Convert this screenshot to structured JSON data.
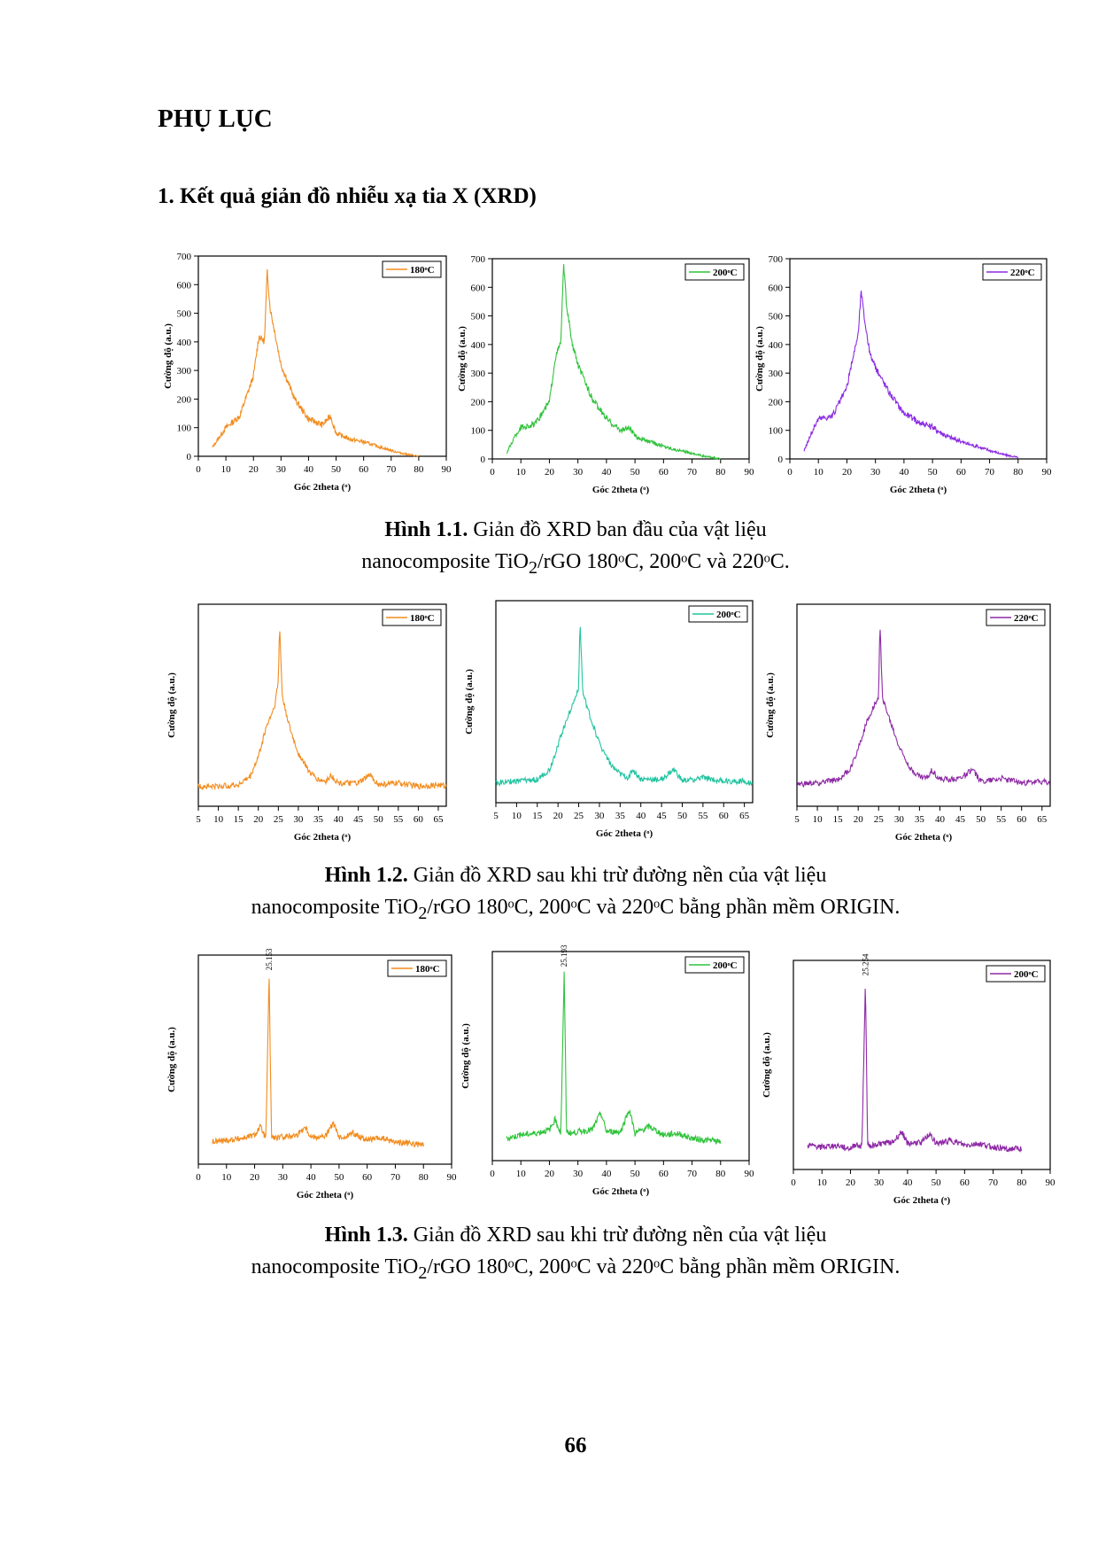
{
  "heading": "PHỤ LỤC",
  "section": "1. Kết quả giản đồ nhiễu xạ tia X (XRD)",
  "page_number": "66",
  "captions": [
    {
      "label": "Hình 1.1.",
      "line1": "Giản đồ XRD ban đầu của vật liệu",
      "line2_pre": "nanocomposite TiO",
      "sub": "2",
      "line2_post": "/rGO 180ᵒC, 200ᵒC và 220ᵒC."
    },
    {
      "label": "Hình 1.2.",
      "line1": "Giản đồ XRD sau khi trừ đường nền của vật liệu",
      "line2_pre": "nanocomposite TiO",
      "sub": "2",
      "line2_post": "/rGO 180ᵒC, 200ᵒC và 220ᵒC bằng phần mềm ORIGIN."
    },
    {
      "label": "Hình 1.3.",
      "line1": "Giản đồ XRD sau khi trừ đường nền của vật liệu",
      "line2_pre": "nanocomposite TiO",
      "sub": "2",
      "line2_post": "/rGO 180ᵒC, 200ᵒC và 220ᵒC bằng phần mềm ORIGIN."
    }
  ],
  "colors": {
    "s180": "#f28c1e",
    "s200": "#2fc33b",
    "s220": "#8b2be2",
    "s200_teal": "#22c4a0",
    "s200_purple": "#8e2aa6"
  },
  "chart_data": [
    {
      "type": "line",
      "figure": "1.1",
      "legend": "180ᵒC",
      "color": "#f28c1e",
      "xlabel": "Góc 2theta (ᵒ)",
      "ylabel": "Cường độ (a.u.)",
      "xlim": [
        0,
        90
      ],
      "ylim": [
        0,
        700
      ],
      "xticks": [
        0,
        10,
        20,
        30,
        40,
        50,
        60,
        70,
        80,
        90
      ],
      "yticks": [
        0,
        100,
        200,
        300,
        400,
        500,
        600,
        700
      ],
      "x": [
        5,
        10,
        15,
        20,
        22,
        24,
        25,
        26,
        28,
        30,
        35,
        40,
        45,
        48,
        50,
        55,
        60,
        65,
        70,
        75,
        80
      ],
      "y": [
        30,
        100,
        140,
        280,
        420,
        400,
        650,
        520,
        420,
        320,
        200,
        130,
        110,
        140,
        80,
        60,
        50,
        35,
        20,
        8,
        0
      ]
    },
    {
      "type": "line",
      "figure": "1.1",
      "legend": "200ᵒC",
      "color": "#2fc33b",
      "xlabel": "Góc 2theta (ᵒ)",
      "ylabel": "Cường độ (a.u.)",
      "xlim": [
        0,
        90
      ],
      "ylim": [
        0,
        700
      ],
      "xticks": [
        0,
        10,
        20,
        30,
        40,
        50,
        60,
        70,
        80,
        90
      ],
      "yticks": [
        0,
        100,
        200,
        300,
        400,
        500,
        600,
        700
      ],
      "x": [
        5,
        8,
        10,
        15,
        20,
        22,
        24,
        25,
        26,
        28,
        30,
        35,
        40,
        45,
        48,
        50,
        55,
        60,
        65,
        70,
        75,
        80
      ],
      "y": [
        20,
        80,
        110,
        120,
        200,
        350,
        410,
        680,
        540,
        400,
        330,
        210,
        140,
        100,
        110,
        80,
        60,
        45,
        30,
        20,
        8,
        0
      ]
    },
    {
      "type": "line",
      "figure": "1.1",
      "legend": "220ᵒC",
      "color": "#8b2be2",
      "xlabel": "Góc 2theta (ᵒ)",
      "ylabel": "Cường độ (a.u.)",
      "xlim": [
        0,
        90
      ],
      "ylim": [
        0,
        700
      ],
      "xticks": [
        0,
        10,
        20,
        30,
        40,
        50,
        60,
        70,
        80,
        90
      ],
      "yticks": [
        0,
        100,
        200,
        300,
        400,
        500,
        600,
        700
      ],
      "x": [
        5,
        8,
        10,
        15,
        20,
        22,
        24,
        25,
        26,
        28,
        30,
        35,
        40,
        45,
        50,
        55,
        60,
        65,
        70,
        75,
        80
      ],
      "y": [
        30,
        100,
        140,
        150,
        250,
        350,
        440,
        590,
        500,
        370,
        320,
        230,
        160,
        130,
        110,
        80,
        60,
        45,
        30,
        15,
        5
      ]
    },
    {
      "type": "line",
      "figure": "1.2",
      "legend": "180ᵒC",
      "color": "#f28c1e",
      "xlabel": "Góc 2theta (ᵒ)",
      "ylabel": "Cường độ (a.u.)",
      "xlim": [
        5,
        67
      ],
      "xticks": [
        5,
        10,
        15,
        20,
        25,
        30,
        35,
        40,
        45,
        50,
        55,
        60,
        65
      ],
      "x": [
        5,
        10,
        15,
        18,
        20,
        22,
        24,
        25,
        25.3,
        26,
        28,
        30,
        33,
        35,
        37,
        38,
        40,
        45,
        48,
        50,
        55,
        60,
        65,
        67
      ],
      "y": [
        0.02,
        0.02,
        0.03,
        0.08,
        0.2,
        0.38,
        0.5,
        0.65,
        1.0,
        0.56,
        0.36,
        0.22,
        0.1,
        0.06,
        0.05,
        0.09,
        0.04,
        0.04,
        0.09,
        0.03,
        0.04,
        0.02,
        0.03,
        0.02
      ]
    },
    {
      "type": "line",
      "figure": "1.2",
      "legend": "200ᵒC",
      "color": "#22c4a0",
      "xlabel": "Góc 2theta (ᵒ)",
      "ylabel": "Cường độ (a.u.)",
      "xlim": [
        5,
        67
      ],
      "xticks": [
        5,
        10,
        15,
        20,
        25,
        30,
        35,
        40,
        45,
        50,
        55,
        60,
        65
      ],
      "x": [
        5,
        10,
        15,
        18,
        20,
        22,
        24,
        25,
        25.3,
        26,
        28,
        30,
        33,
        35,
        37,
        38,
        40,
        45,
        48,
        50,
        55,
        60,
        65,
        67
      ],
      "y": [
        0.02,
        0.03,
        0.04,
        0.1,
        0.25,
        0.4,
        0.52,
        0.6,
        1.0,
        0.56,
        0.4,
        0.26,
        0.12,
        0.07,
        0.05,
        0.1,
        0.04,
        0.04,
        0.1,
        0.03,
        0.05,
        0.03,
        0.03,
        0.02
      ]
    },
    {
      "type": "line",
      "figure": "1.2",
      "legend": "220ᵒC",
      "color": "#8e2aa6",
      "xlabel": "Góc 2theta (ᵒ)",
      "ylabel": "Cường độ (a.u.)",
      "xlim": [
        5,
        67
      ],
      "xticks": [
        5,
        10,
        15,
        20,
        25,
        30,
        35,
        40,
        45,
        50,
        55,
        60,
        65
      ],
      "x": [
        5,
        10,
        15,
        18,
        20,
        22,
        24,
        25,
        25.3,
        26,
        28,
        30,
        33,
        35,
        37,
        38,
        40,
        45,
        48,
        50,
        55,
        60,
        65,
        67
      ],
      "y": [
        0.03,
        0.04,
        0.06,
        0.12,
        0.25,
        0.4,
        0.52,
        0.55,
        1.0,
        0.55,
        0.4,
        0.26,
        0.12,
        0.08,
        0.07,
        0.12,
        0.06,
        0.07,
        0.12,
        0.05,
        0.07,
        0.04,
        0.05,
        0.04
      ]
    },
    {
      "type": "line",
      "figure": "1.3",
      "legend": "180ᵒC",
      "color": "#f28c1e",
      "peak_label": "25.153",
      "xlabel": "Góc 2theta (ᵒ)",
      "ylabel": "Cường độ (a.u.)",
      "xlim": [
        0,
        90
      ],
      "xticks": [
        0,
        10,
        20,
        30,
        40,
        50,
        60,
        70,
        80,
        90
      ],
      "x": [
        5,
        10,
        15,
        20,
        22,
        24,
        25.15,
        26,
        28,
        30,
        35,
        38,
        40,
        45,
        48,
        50,
        55,
        60,
        65,
        70,
        75,
        80
      ],
      "y": [
        0.03,
        0.04,
        0.05,
        0.07,
        0.12,
        0.05,
        1.0,
        0.06,
        0.05,
        0.06,
        0.07,
        0.12,
        0.06,
        0.06,
        0.14,
        0.05,
        0.08,
        0.04,
        0.05,
        0.03,
        0.02,
        0.01
      ]
    },
    {
      "type": "line",
      "figure": "1.3",
      "legend": "200ᵒC",
      "color": "#2fc33b",
      "peak_label": "25.193",
      "xlabel": "Góc 2theta (ᵒ)",
      "ylabel": "Cường độ (a.u.)",
      "xlim": [
        0,
        90
      ],
      "xticks": [
        0,
        10,
        20,
        30,
        40,
        50,
        60,
        70,
        80,
        90
      ],
      "x": [
        5,
        10,
        15,
        20,
        22,
        24,
        25.19,
        26,
        28,
        30,
        35,
        38,
        40,
        45,
        48,
        50,
        55,
        60,
        65,
        70,
        75,
        80
      ],
      "y": [
        0.03,
        0.05,
        0.06,
        0.08,
        0.14,
        0.06,
        1.0,
        0.07,
        0.06,
        0.07,
        0.08,
        0.18,
        0.07,
        0.07,
        0.2,
        0.06,
        0.1,
        0.05,
        0.06,
        0.03,
        0.02,
        0.01
      ]
    },
    {
      "type": "line",
      "figure": "1.3",
      "legend": "200ᵒC",
      "color": "#8e2aa6",
      "peak_label": "25.254",
      "xlabel": "Góc 2theta (ᵒ)",
      "ylabel": "Cường độ (a.u.)",
      "xlim": [
        0,
        90
      ],
      "xticks": [
        0,
        10,
        20,
        30,
        40,
        50,
        60,
        70,
        80,
        90
      ],
      "x": [
        5,
        10,
        15,
        20,
        22,
        24,
        25.25,
        26,
        28,
        30,
        35,
        38,
        40,
        45,
        48,
        50,
        55,
        60,
        65,
        70,
        75,
        80
      ],
      "y": [
        0.04,
        0.03,
        0.04,
        0.02,
        0.05,
        0.03,
        1.0,
        0.05,
        0.04,
        0.05,
        0.06,
        0.12,
        0.05,
        0.06,
        0.11,
        0.05,
        0.07,
        0.04,
        0.05,
        0.03,
        0.02,
        0.02
      ]
    }
  ]
}
